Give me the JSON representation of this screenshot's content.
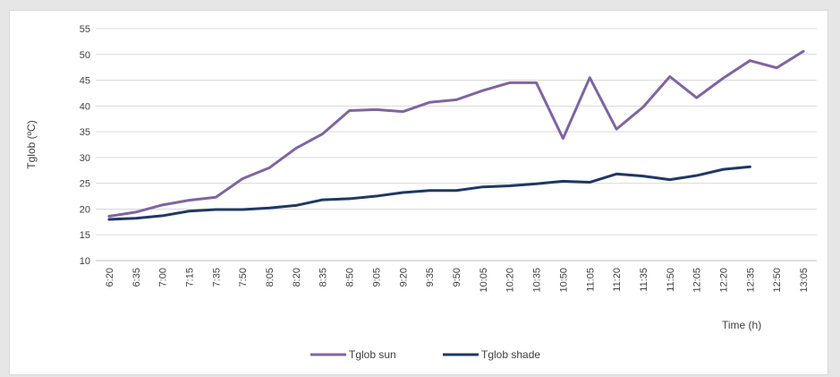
{
  "chart_data": {
    "type": "line",
    "xlabel": "Time (h)",
    "ylabel": "Tglob (ºC)",
    "ylim": [
      10,
      55
    ],
    "yticks": [
      10,
      15,
      20,
      25,
      30,
      35,
      40,
      45,
      50,
      55
    ],
    "grid": true,
    "legend_position": "bottom",
    "categories": [
      "6:20",
      "6:35",
      "7:00",
      "7:15",
      "7:35",
      "7:50",
      "8:05",
      "8:20",
      "8:35",
      "8:50",
      "9:05",
      "9:20",
      "9:35",
      "9:50",
      "10:05",
      "10:20",
      "10:35",
      "10:50",
      "11:05",
      "11:20",
      "11:35",
      "11:50",
      "12:05",
      "12:20",
      "12:35",
      "12:50",
      "13:05"
    ],
    "series": [
      {
        "name": "Tglob sun",
        "color": "#8064a2",
        "values": [
          18.6,
          19.4,
          20.8,
          21.7,
          22.3,
          25.9,
          28.0,
          31.8,
          34.6,
          39.1,
          39.3,
          38.9,
          40.7,
          41.2,
          43.0,
          44.5,
          44.5,
          33.7,
          45.5,
          35.5,
          39.8,
          45.7,
          41.6,
          45.4,
          48.8,
          47.4,
          50.6
        ]
      },
      {
        "name": "Tglob shade",
        "color": "#1f3864",
        "values": [
          18.0,
          18.2,
          18.7,
          19.6,
          19.9,
          19.9,
          20.2,
          20.7,
          21.8,
          22.0,
          22.5,
          23.2,
          23.6,
          23.6,
          24.3,
          24.5,
          24.9,
          25.4,
          25.2,
          26.8,
          26.4,
          25.7,
          26.5,
          27.7,
          28.2,
          null,
          null
        ]
      }
    ]
  }
}
